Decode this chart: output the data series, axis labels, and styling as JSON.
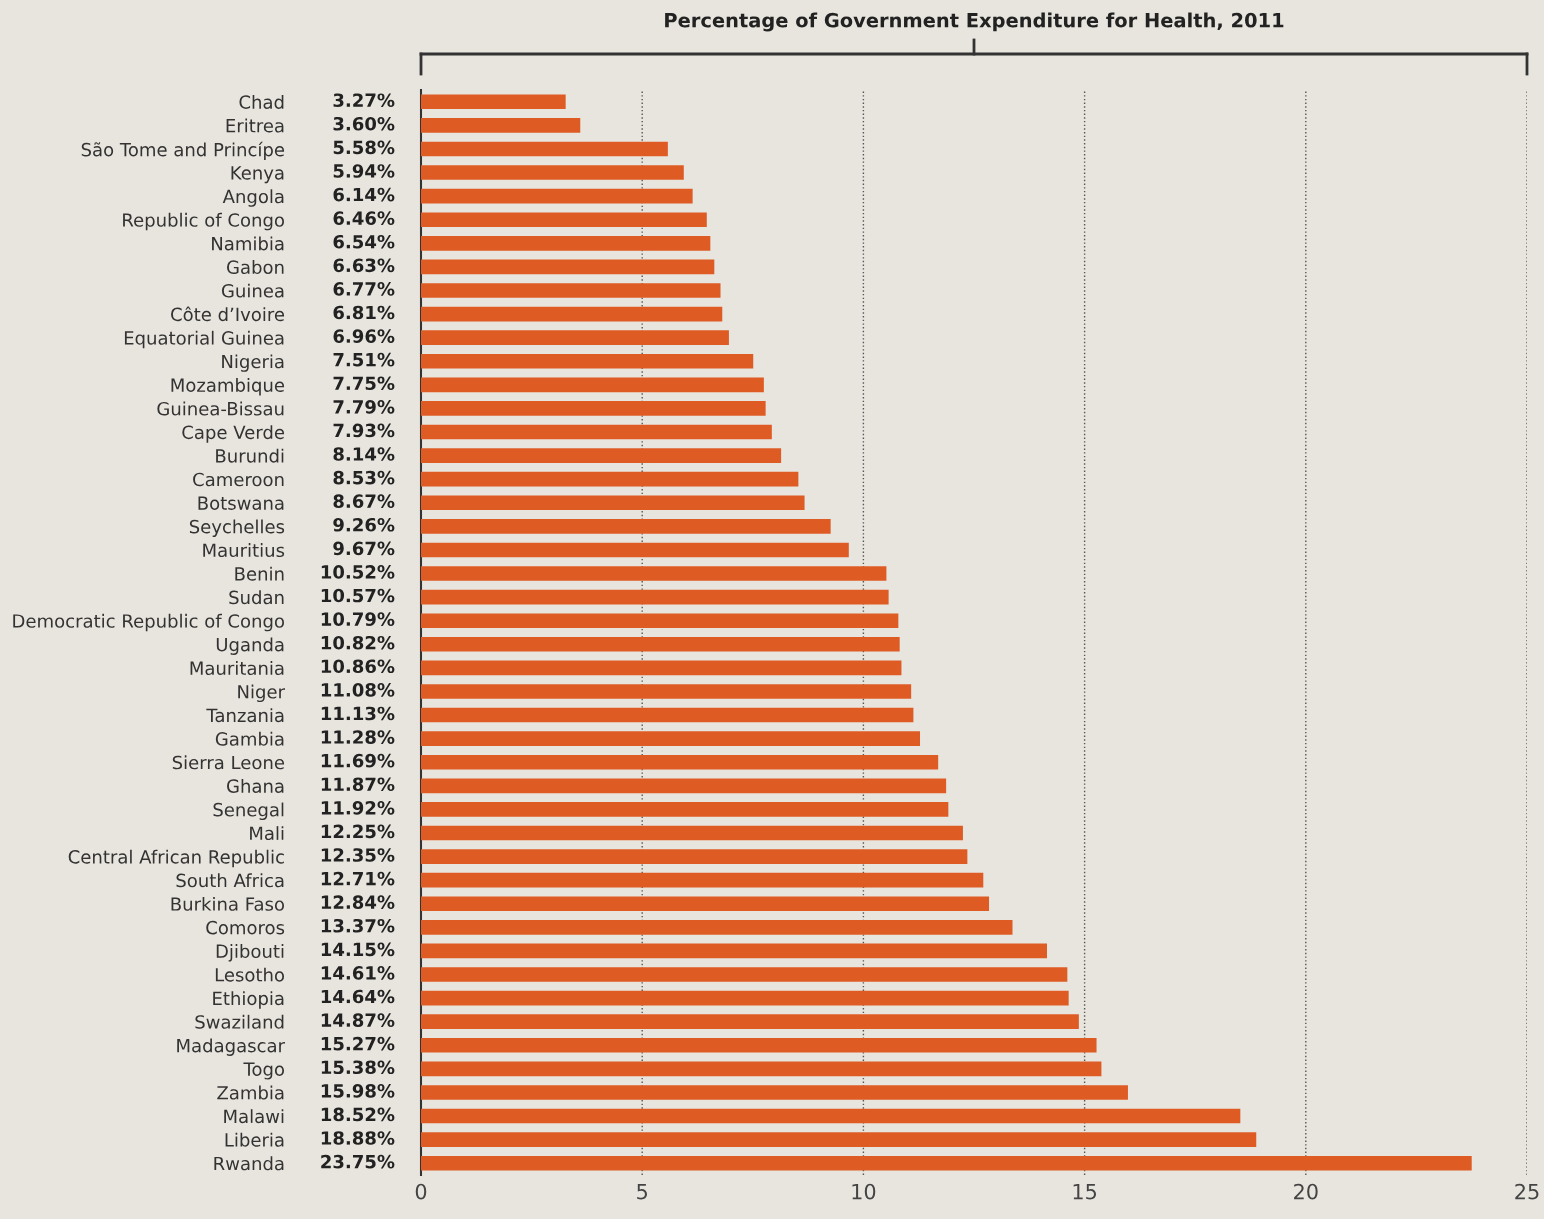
{
  "chart_data": {
    "type": "bar",
    "orientation": "horizontal",
    "title": "Percentage of Government Expenditure for Health, 2011",
    "categories": [
      "Chad",
      "Eritrea",
      "São Tome and Princípe",
      "Kenya",
      "Angola",
      "Republic of Congo",
      "Namibia",
      "Gabon",
      "Guinea",
      "Côte d’Ivoire",
      "Equatorial Guinea",
      "Nigeria",
      "Mozambique",
      "Guinea-Bissau",
      "Cape Verde",
      "Burundi",
      "Cameroon",
      "Botswana",
      "Seychelles",
      "Mauritius",
      "Benin",
      "Sudan",
      "Democratic Republic of Congo",
      "Uganda",
      "Mauritania",
      "Niger",
      "Tanzania",
      "Gambia",
      "Sierra Leone",
      "Ghana",
      "Senegal",
      "Mali",
      "Central African Republic",
      "South Africa",
      "Burkina Faso",
      "Comoros",
      "Djibouti",
      "Lesotho",
      "Ethiopia",
      "Swaziland",
      "Madagascar",
      "Togo",
      "Zambia",
      "Malawi",
      "Liberia",
      "Rwanda"
    ],
    "values": [
      3.27,
      3.6,
      5.58,
      5.94,
      6.14,
      6.46,
      6.54,
      6.63,
      6.77,
      6.81,
      6.96,
      7.51,
      7.75,
      7.79,
      7.93,
      8.14,
      8.53,
      8.67,
      9.26,
      9.67,
      10.52,
      10.57,
      10.79,
      10.82,
      10.86,
      11.08,
      11.13,
      11.28,
      11.69,
      11.87,
      11.92,
      12.25,
      12.35,
      12.71,
      12.84,
      13.37,
      14.15,
      14.61,
      14.64,
      14.87,
      15.27,
      15.38,
      15.98,
      18.52,
      18.88,
      23.75
    ],
    "value_labels": [
      "3.27%",
      "3.60%",
      "5.58%",
      "5.94%",
      "6.14%",
      "6.46%",
      "6.54%",
      "6.63%",
      "6.77%",
      "6.81%",
      "6.96%",
      "7.51%",
      "7.75%",
      "7.79%",
      "7.93%",
      "8.14%",
      "8.53%",
      "8.67%",
      "9.26%",
      "9.67%",
      "10.52%",
      "10.57%",
      "10.79%",
      "10.82%",
      "10.86%",
      "11.08%",
      "11.13%",
      "11.28%",
      "11.69%",
      "11.87%",
      "11.92%",
      "12.25%",
      "12.35%",
      "12.71%",
      "12.84%",
      "13.37%",
      "14.15%",
      "14.61%",
      "14.64%",
      "14.87%",
      "15.27%",
      "15.38%",
      "15.98%",
      "18.52%",
      "18.88%",
      "23.75%"
    ],
    "color": "#df5b24",
    "xlim": [
      0,
      25
    ],
    "xticks": [
      0,
      5,
      10,
      15,
      20,
      25
    ],
    "grid": "x",
    "line_style": "dotted",
    "legend": false
  }
}
